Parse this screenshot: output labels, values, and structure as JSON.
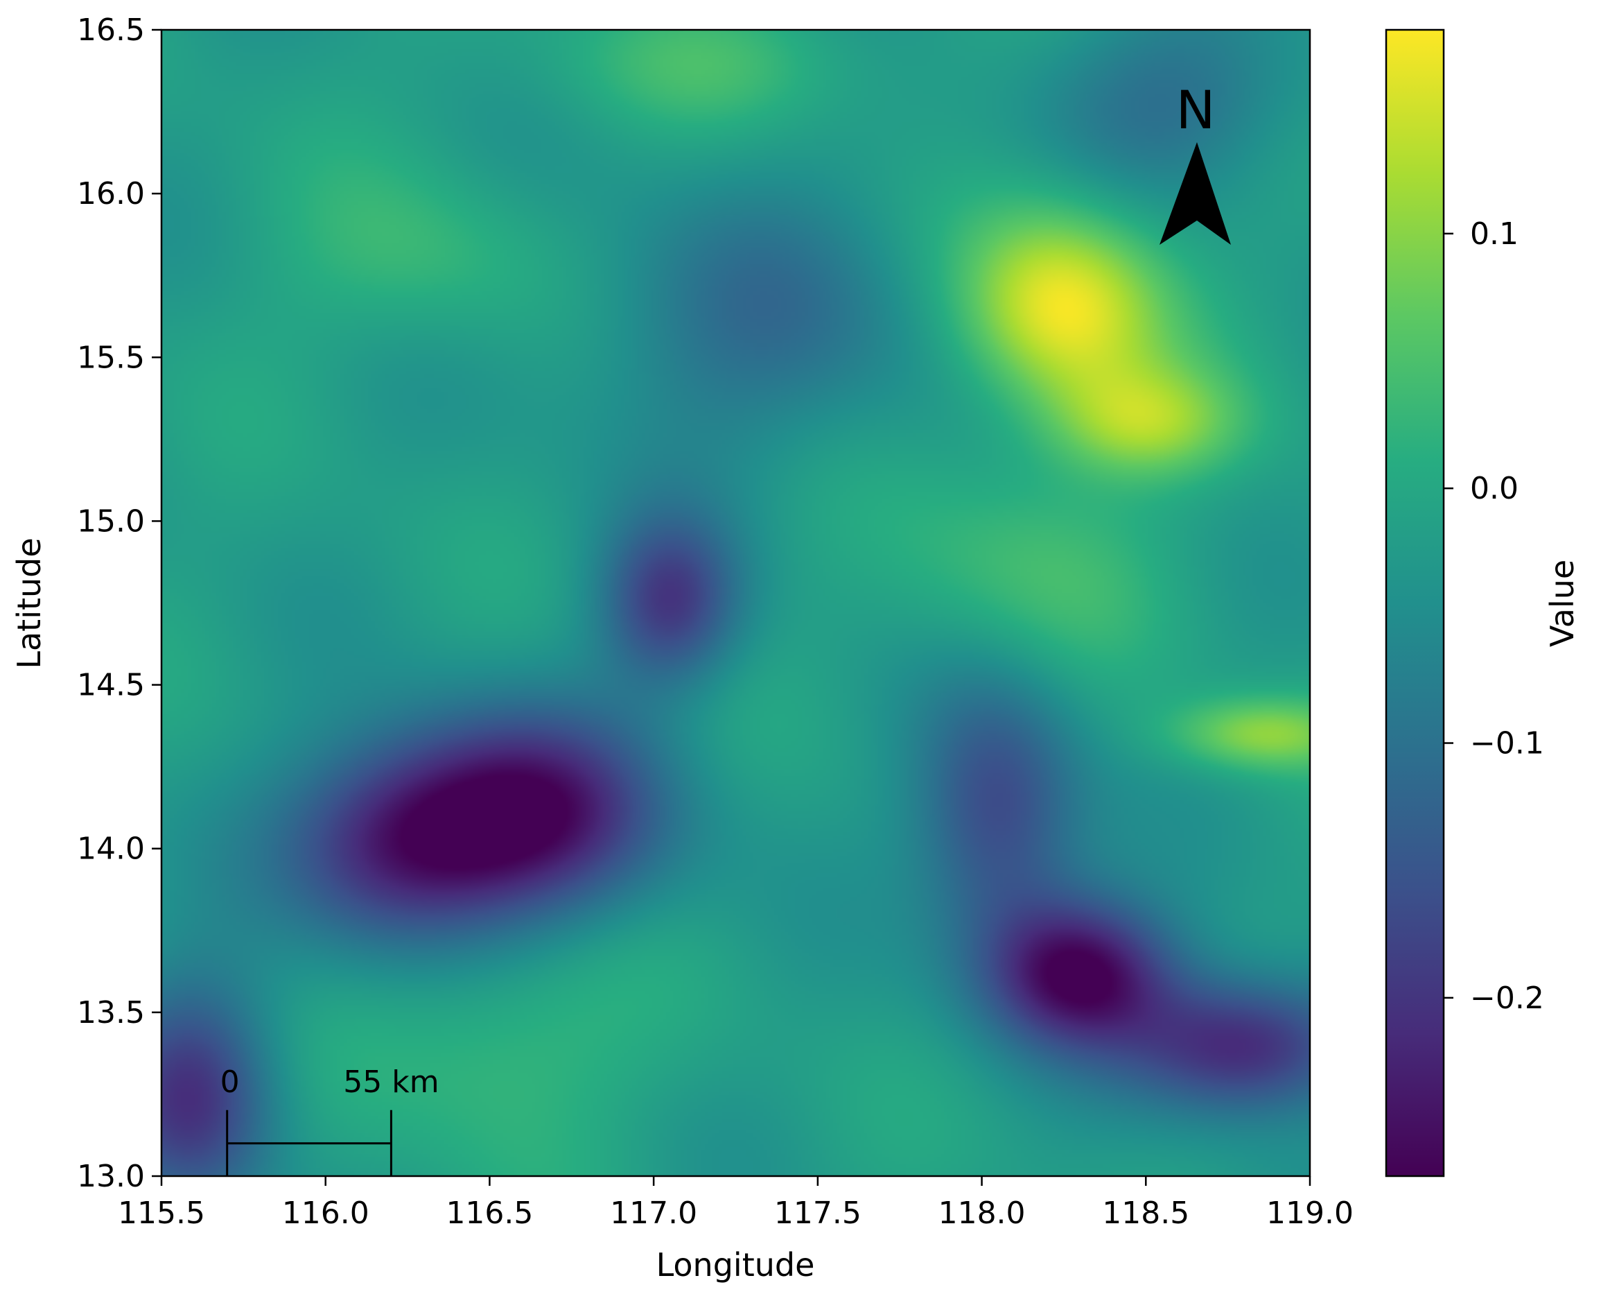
{
  "chart_data": {
    "type": "heatmap",
    "title": "",
    "xlabel": "Longitude",
    "ylabel": "Latitude",
    "xlim": [
      115.5,
      119.0
    ],
    "ylim": [
      13.0,
      16.5
    ],
    "x_ticks": [
      115.5,
      116.0,
      116.5,
      117.0,
      117.5,
      118.0,
      118.5,
      119.0
    ],
    "x_tick_labels": [
      "115.5",
      "116.0",
      "116.5",
      "117.0",
      "117.5",
      "118.0",
      "118.5",
      "119.0"
    ],
    "y_ticks": [
      13.0,
      13.5,
      14.0,
      14.5,
      15.0,
      15.5,
      16.0,
      16.5
    ],
    "y_tick_labels": [
      "13.0",
      "13.5",
      "14.0",
      "14.5",
      "15.0",
      "15.5",
      "16.0",
      "16.5"
    ],
    "colormap": "viridis",
    "colorbar": {
      "label": "Value",
      "vmin": -0.27,
      "vmax": 0.18,
      "ticks": [
        0.1,
        0.0,
        -0.1,
        -0.2
      ],
      "tick_labels": [
        "0.1",
        "0.0",
        "−0.1",
        "−0.2"
      ]
    },
    "base_value": -0.02,
    "features": [
      {
        "lon": 118.25,
        "lat": 15.65,
        "value": 0.18,
        "rx": 0.22,
        "ry": 0.22
      },
      {
        "lon": 118.5,
        "lat": 15.3,
        "value": 0.1,
        "rx": 0.2,
        "ry": 0.12
      },
      {
        "lon": 118.85,
        "lat": 14.35,
        "value": 0.1,
        "rx": 0.2,
        "ry": 0.08
      },
      {
        "lon": 116.6,
        "lat": 14.1,
        "value": -0.26,
        "rx": 0.3,
        "ry": 0.22
      },
      {
        "lon": 116.2,
        "lat": 14.0,
        "value": -0.19,
        "rx": 0.25,
        "ry": 0.22
      },
      {
        "lon": 117.05,
        "lat": 14.75,
        "value": -0.19,
        "rx": 0.15,
        "ry": 0.18
      },
      {
        "lon": 118.3,
        "lat": 13.62,
        "value": -0.26,
        "rx": 0.2,
        "ry": 0.16
      },
      {
        "lon": 118.05,
        "lat": 14.1,
        "value": -0.18,
        "rx": 0.18,
        "ry": 0.3
      },
      {
        "lon": 118.8,
        "lat": 13.4,
        "value": -0.23,
        "rx": 0.25,
        "ry": 0.15
      },
      {
        "lon": 115.6,
        "lat": 13.25,
        "value": -0.2,
        "rx": 0.18,
        "ry": 0.25
      },
      {
        "lon": 116.3,
        "lat": 15.8,
        "value": 0.03,
        "rx": 0.3,
        "ry": 0.2
      },
      {
        "lon": 116.5,
        "lat": 13.4,
        "value": 0.04,
        "rx": 0.3,
        "ry": 0.25
      },
      {
        "lon": 117.2,
        "lat": 16.4,
        "value": 0.03,
        "rx": 0.4,
        "ry": 0.15
      },
      {
        "lon": 117.3,
        "lat": 15.6,
        "value": -0.1,
        "rx": 0.4,
        "ry": 0.3
      },
      {
        "lon": 118.6,
        "lat": 16.3,
        "value": -0.1,
        "rx": 0.3,
        "ry": 0.2
      },
      {
        "lon": 118.1,
        "lat": 14.85,
        "value": 0.04,
        "rx": 0.3,
        "ry": 0.25
      }
    ],
    "north_arrow": {
      "label": "N"
    },
    "scale_bar": {
      "start_label": "0",
      "end_label": "55 km",
      "lon_start": 115.7,
      "lon_end": 116.2,
      "lat": 13.1
    }
  }
}
